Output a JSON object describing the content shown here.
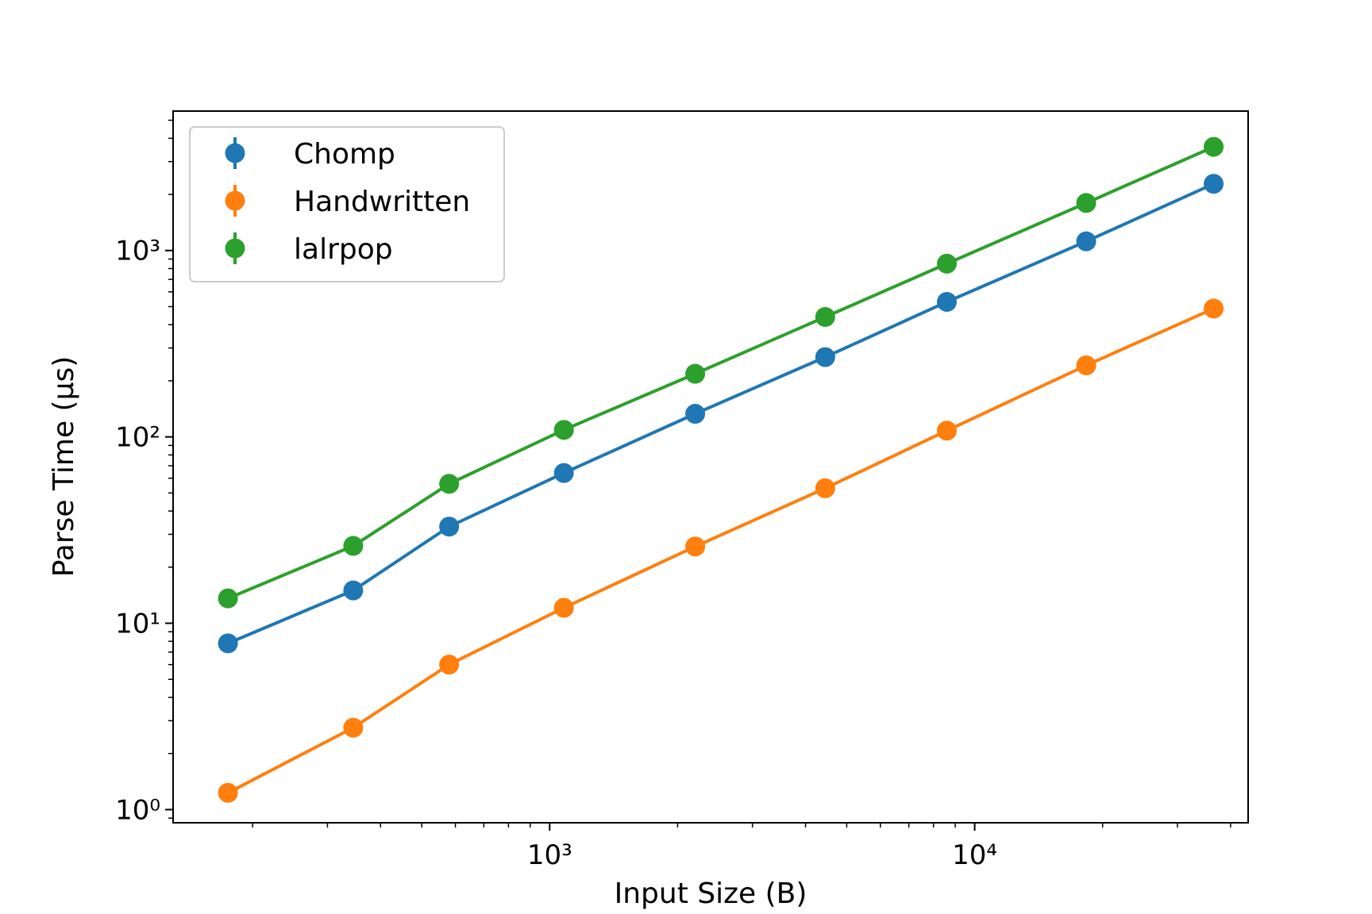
{
  "chart_data": {
    "type": "line",
    "xlabel": "Input Size (B)",
    "ylabel": "Parse Time (µs)",
    "xscale": "log",
    "yscale": "log",
    "xlim": [
      130,
      44000
    ],
    "ylim": [
      0.85,
      5600
    ],
    "grid": false,
    "legend_position": "top-left",
    "x": [
      175,
      345,
      580,
      1080,
      2200,
      4450,
      8600,
      18300,
      36500
    ],
    "x_ticks": [
      "10³",
      "10⁴"
    ],
    "y_ticks": [
      "10⁰",
      "10¹",
      "10²",
      "10³"
    ],
    "series": [
      {
        "name": "Chomp",
        "color": "#1f77b4",
        "values": [
          7.8,
          15,
          33,
          64,
          133,
          268,
          530,
          1120,
          2280
        ]
      },
      {
        "name": "Handwritten",
        "color": "#ff7f0e",
        "values": [
          1.23,
          2.75,
          6.0,
          12.1,
          25.8,
          53,
          108,
          242,
          488
        ]
      },
      {
        "name": "lalrpop",
        "color": "#2ca02c",
        "values": [
          13.6,
          26,
          56,
          109,
          218,
          440,
          850,
          1800,
          3600
        ]
      }
    ]
  }
}
